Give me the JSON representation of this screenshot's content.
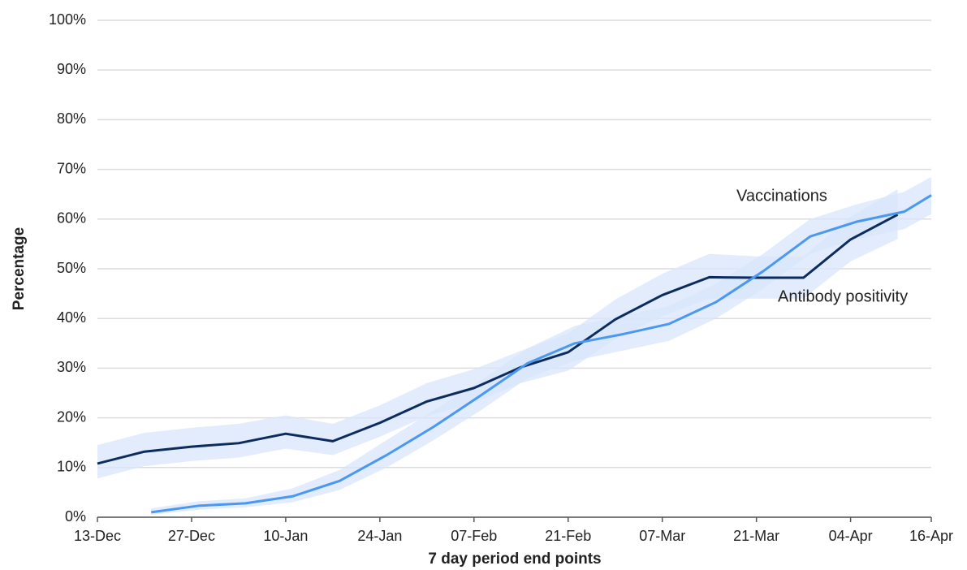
{
  "chart_data": {
    "type": "line",
    "ylabel": "Percentage",
    "xlabel": "7 day period end points",
    "xlim": [
      0,
      124
    ],
    "xticks": [
      {
        "value": 0,
        "label": "13-Dec"
      },
      {
        "value": 14,
        "label": "27-Dec"
      },
      {
        "value": 28,
        "label": "10-Jan"
      },
      {
        "value": 42,
        "label": "24-Jan"
      },
      {
        "value": 56,
        "label": "07-Feb"
      },
      {
        "value": 70,
        "label": "21-Feb"
      },
      {
        "value": 84,
        "label": "07-Mar"
      },
      {
        "value": 98,
        "label": "21-Mar"
      },
      {
        "value": 112,
        "label": "04-Apr"
      },
      {
        "value": 124,
        "label": "16-Apr"
      }
    ],
    "ylim": [
      0,
      100
    ],
    "yticks": [
      {
        "value": 0,
        "label": "0%"
      },
      {
        "value": 10,
        "label": "10%"
      },
      {
        "value": 20,
        "label": "20%"
      },
      {
        "value": 30,
        "label": "30%"
      },
      {
        "value": 40,
        "label": "40%"
      },
      {
        "value": 50,
        "label": "50%"
      },
      {
        "value": 60,
        "label": "60%"
      },
      {
        "value": 70,
        "label": "70%"
      },
      {
        "value": 80,
        "label": "80%"
      },
      {
        "value": 90,
        "label": "90%"
      },
      {
        "value": 100,
        "label": "100%"
      }
    ],
    "grid": true,
    "band_color": "#d8e6fb",
    "series": [
      {
        "name": "Antibody positivity",
        "color": "#0d2c5e",
        "x": [
          0,
          7,
          14,
          21,
          28,
          35,
          42,
          49,
          56,
          63,
          70,
          77,
          84,
          91,
          98,
          105,
          112,
          119
        ],
        "values": [
          10.8,
          13.2,
          14.2,
          14.9,
          16.8,
          15.3,
          19.0,
          23.3,
          26.0,
          30.2,
          33.2,
          39.8,
          44.7,
          48.3,
          48.2,
          48.2,
          55.9,
          60.9
        ],
        "lower": [
          7.8,
          10.3,
          11.3,
          12.0,
          13.8,
          12.5,
          16.2,
          20.3,
          23.0,
          27.0,
          29.5,
          35.8,
          40.5,
          44.0,
          44.0,
          44.0,
          51.5,
          56.0
        ],
        "upper": [
          14.5,
          17.0,
          18.0,
          18.8,
          20.5,
          18.8,
          22.5,
          27.0,
          29.8,
          33.5,
          37.0,
          43.8,
          49.0,
          53.0,
          52.5,
          52.5,
          60.5,
          66.0
        ]
      },
      {
        "name": "Vaccinations",
        "color": "#4a98ef",
        "x": [
          8,
          15,
          22,
          29,
          36,
          43,
          50,
          57,
          64,
          71,
          78,
          85,
          92,
          99,
          106,
          113,
          120,
          124
        ],
        "values": [
          1.0,
          2.3,
          2.8,
          4.2,
          7.3,
          12.5,
          18.2,
          24.5,
          31.0,
          35.0,
          36.8,
          38.9,
          43.3,
          49.5,
          56.5,
          59.5,
          61.5,
          64.8
        ],
        "lower": [
          0.5,
          1.5,
          2.0,
          3.0,
          5.5,
          10.0,
          15.5,
          21.5,
          28.0,
          31.5,
          33.5,
          35.5,
          40.0,
          46.0,
          53.0,
          56.0,
          58.0,
          61.0
        ],
        "upper": [
          1.8,
          3.2,
          3.8,
          5.8,
          9.5,
          15.5,
          21.5,
          27.5,
          34.0,
          38.5,
          40.5,
          42.5,
          47.0,
          53.0,
          60.0,
          63.0,
          65.5,
          68.5
        ]
      }
    ]
  }
}
